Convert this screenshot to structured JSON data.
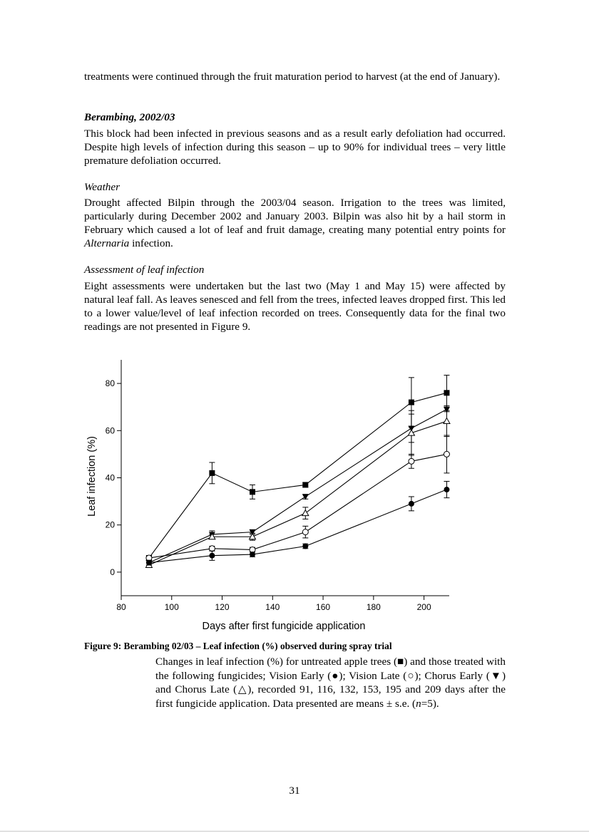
{
  "intro": {
    "text": "treatments were continued through the fruit maturation period to harvest (at the end of January)."
  },
  "section1": {
    "heading": "Berambing, 2002/03",
    "text": "This block had been infected in previous seasons and as a result early defoliation had occurred.  Despite high levels of infection during this season – up to 90% for individual trees – very little premature defoliation occurred."
  },
  "weather": {
    "heading": "Weather",
    "text_before": "Drought affected Bilpin through the 2003/04 season.  Irrigation to the trees was limited, particularly during December 2002 and January 2003.  Bilpin was also hit by a hail storm in February which caused a lot of leaf and fruit damage, creating many potential entry points for ",
    "text_italic": "Alternaria",
    "text_after": " infection."
  },
  "assessment": {
    "heading": "Assessment of leaf infection",
    "text": "Eight assessments were undertaken but the last two (May 1 and May 15) were affected by natural leaf fall.  As leaves senesced and fell from the trees, infected leaves dropped first.  This led to a lower value/level of leaf infection recorded on trees.  Consequently data for the final two readings are not presented in Figure 9."
  },
  "figure": {
    "caption_title": "Figure 9:  Berambing 02/03 – Leaf infection (%) observed during spray trial",
    "caption_text_1": "Changes in leaf infection (%) for untreated apple trees (■) and those treated with the following fungicides; Vision Early (●); Vision Late (○); Chorus Early (▼) and Chorus Late (△), recorded 91, 116, 132, 153, 195 and 209 days after the first fungicide application.  Data presented are means ± s.e. (",
    "caption_text_italic": "n",
    "caption_text_2": "=5)."
  },
  "chart_data": {
    "type": "line",
    "xlabel": "Days after first fungicide application",
    "ylabel": "Leaf infection (%)",
    "xlim": [
      80,
      210
    ],
    "ylim": [
      -10,
      90
    ],
    "x_ticks": [
      80,
      100,
      120,
      140,
      160,
      180,
      200
    ],
    "y_ticks": [
      0,
      20,
      40,
      60,
      80
    ],
    "x_tick_labels": [
      "80",
      "100",
      "120",
      "140",
      "160",
      "180",
      "200"
    ],
    "y_tick_labels": [
      "0",
      "20",
      "40",
      "60",
      "80"
    ],
    "grid": false,
    "x": [
      91,
      116,
      132,
      153,
      195,
      209
    ],
    "series": [
      {
        "marker": "filled-square",
        "values": [
          6,
          42,
          34,
          37,
          72,
          76
        ],
        "errors": [
          1,
          4.5,
          3,
          1,
          10.5,
          7.5
        ]
      },
      {
        "marker": "filled-triangle-down",
        "values": [
          4,
          16,
          17,
          32,
          61,
          69
        ],
        "errors": [
          1,
          1.5,
          1,
          1,
          6,
          1
        ]
      },
      {
        "marker": "open-triangle-up",
        "values": [
          3,
          15,
          15,
          25,
          59,
          64
        ],
        "errors": [
          1,
          1,
          1.5,
          2.5,
          9.5,
          6.5
        ]
      },
      {
        "marker": "open-circle",
        "values": [
          6,
          10,
          9.5,
          17,
          47,
          50
        ],
        "errors": [
          1,
          1,
          1,
          2.5,
          3,
          8
        ]
      },
      {
        "marker": "filled-circle",
        "values": [
          4,
          7,
          7.5,
          11,
          29,
          35
        ],
        "errors": [
          1,
          2,
          1,
          1,
          3,
          3.5
        ]
      }
    ]
  },
  "page": {
    "number": "31"
  }
}
